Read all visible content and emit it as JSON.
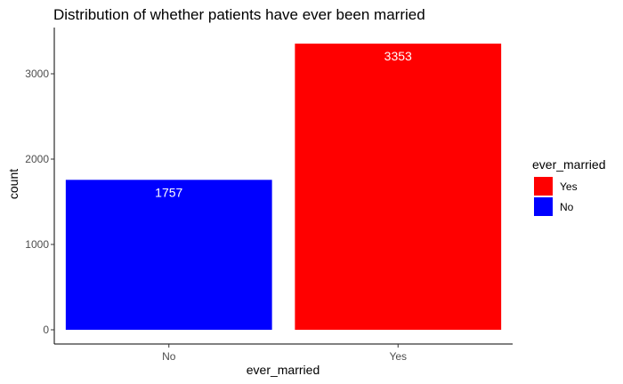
{
  "chart_data": {
    "type": "bar",
    "title": "Distribution of whether patients have ever been married",
    "xlabel": "ever_married",
    "ylabel": "count",
    "categories": [
      "No",
      "Yes"
    ],
    "values": [
      1757,
      3353
    ],
    "value_labels": [
      "1757",
      "3353"
    ],
    "colors": [
      "#0000ff",
      "#ff0000"
    ],
    "ylim": [
      0,
      3500
    ],
    "yticks": [
      0,
      1000,
      2000,
      3000
    ],
    "ytick_labels": [
      "0",
      "1000",
      "2000",
      "3000"
    ],
    "grid": false,
    "legend": {
      "title": "ever_married",
      "placement": "right",
      "entries": [
        {
          "label": "Yes",
          "color": "#ff0000"
        },
        {
          "label": "No",
          "color": "#0000ff"
        }
      ]
    }
  }
}
